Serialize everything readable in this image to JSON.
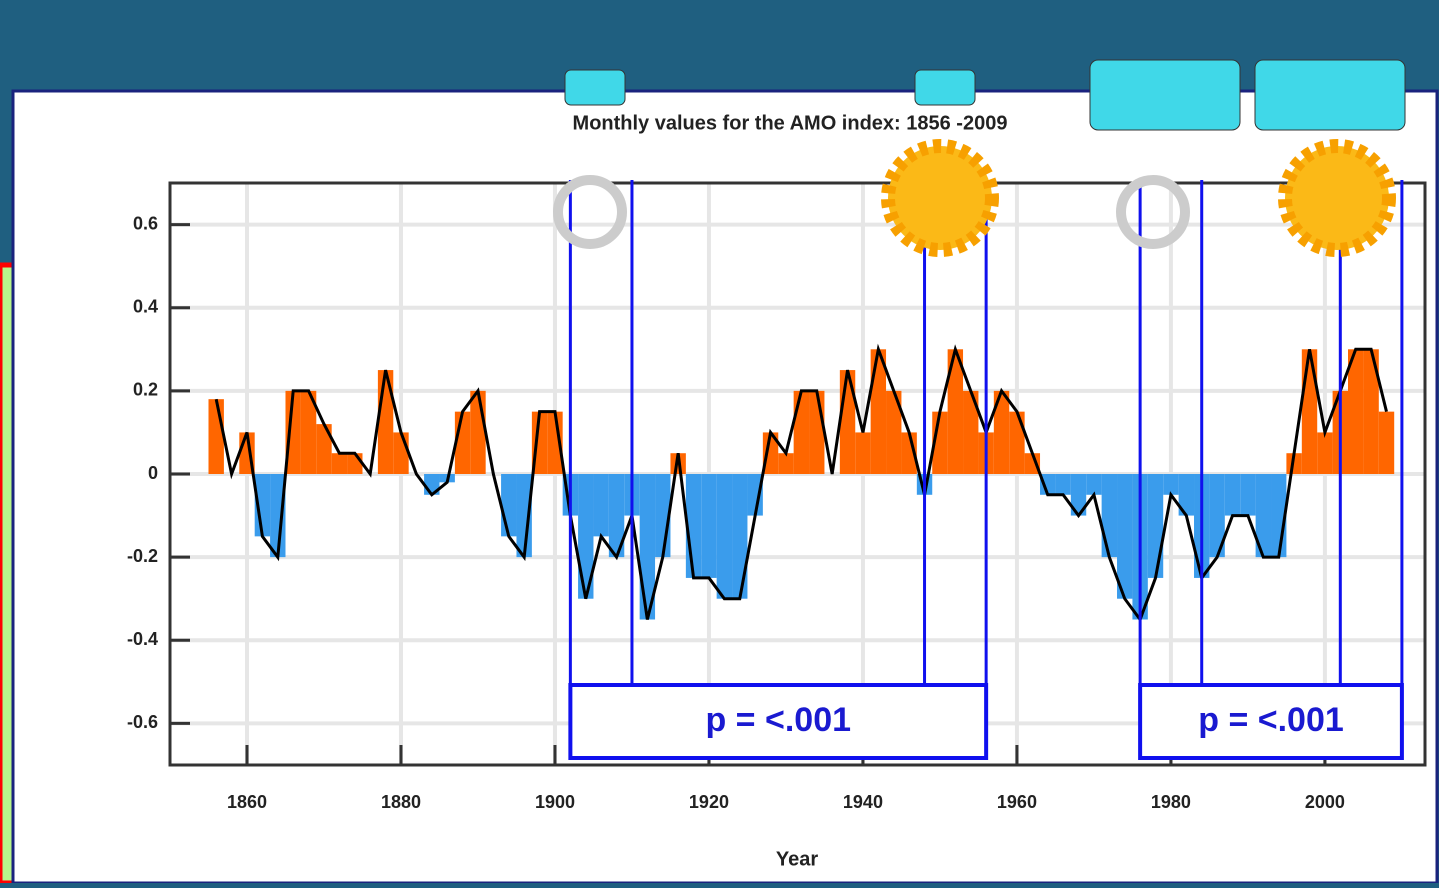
{
  "chart_data": {
    "type": "bar",
    "title": "Monthly values for the AMO index: 1856 -2009",
    "x_label": "Year",
    "x": [
      1856,
      1858,
      1860,
      1862,
      1864,
      1866,
      1868,
      1870,
      1872,
      1874,
      1876,
      1878,
      1880,
      1882,
      1884,
      1886,
      1888,
      1890,
      1892,
      1894,
      1896,
      1898,
      1900,
      1902,
      1904,
      1906,
      1908,
      1910,
      1912,
      1914,
      1916,
      1918,
      1920,
      1922,
      1924,
      1926,
      1928,
      1930,
      1932,
      1934,
      1936,
      1938,
      1940,
      1942,
      1944,
      1946,
      1948,
      1950,
      1952,
      1954,
      1956,
      1958,
      1960,
      1962,
      1964,
      1966,
      1968,
      1970,
      1972,
      1974,
      1976,
      1978,
      1980,
      1982,
      1984,
      1986,
      1988,
      1990,
      1992,
      1994,
      1996,
      1998,
      2000,
      2002,
      2004,
      2006,
      2008
    ],
    "values": [
      0.18,
      0.0,
      0.1,
      -0.15,
      -0.2,
      0.2,
      0.2,
      0.12,
      0.05,
      0.05,
      0.0,
      0.25,
      0.1,
      0.0,
      -0.05,
      -0.02,
      0.15,
      0.2,
      0.0,
      -0.15,
      -0.2,
      0.15,
      0.15,
      -0.1,
      -0.3,
      -0.15,
      -0.2,
      -0.1,
      -0.35,
      -0.2,
      0.05,
      -0.25,
      -0.25,
      -0.3,
      -0.3,
      -0.1,
      0.1,
      0.05,
      0.2,
      0.2,
      0.0,
      0.25,
      0.1,
      0.3,
      0.2,
      0.1,
      -0.05,
      0.15,
      0.3,
      0.2,
      0.1,
      0.2,
      0.15,
      0.05,
      -0.05,
      -0.05,
      -0.1,
      -0.05,
      -0.2,
      -0.3,
      -0.35,
      -0.25,
      -0.05,
      -0.1,
      -0.25,
      -0.2,
      -0.1,
      -0.1,
      -0.2,
      -0.2,
      0.05,
      0.3,
      0.1,
      0.2,
      0.3,
      0.3,
      0.15
    ],
    "positive_color": "#ff6600",
    "negative_color": "#3a9cec",
    "line_color": "#000000",
    "xlim": [
      1850,
      2013
    ],
    "xticks": [
      1860,
      1880,
      1900,
      1920,
      1940,
      1960,
      1980,
      2000
    ],
    "ylim": [
      -0.7,
      0.7
    ],
    "yticks": [
      -0.6,
      -0.4,
      -0.2,
      0,
      0.2,
      0.4,
      0.6
    ],
    "grid": true,
    "annotations": [
      {
        "text": "p = <.001",
        "spans": [
          [
            1902,
            1910
          ],
          [
            1948,
            1956
          ]
        ]
      },
      {
        "text": "p = <.001",
        "spans": [
          [
            1976,
            1984
          ],
          [
            2002,
            2010
          ]
        ]
      }
    ]
  }
}
